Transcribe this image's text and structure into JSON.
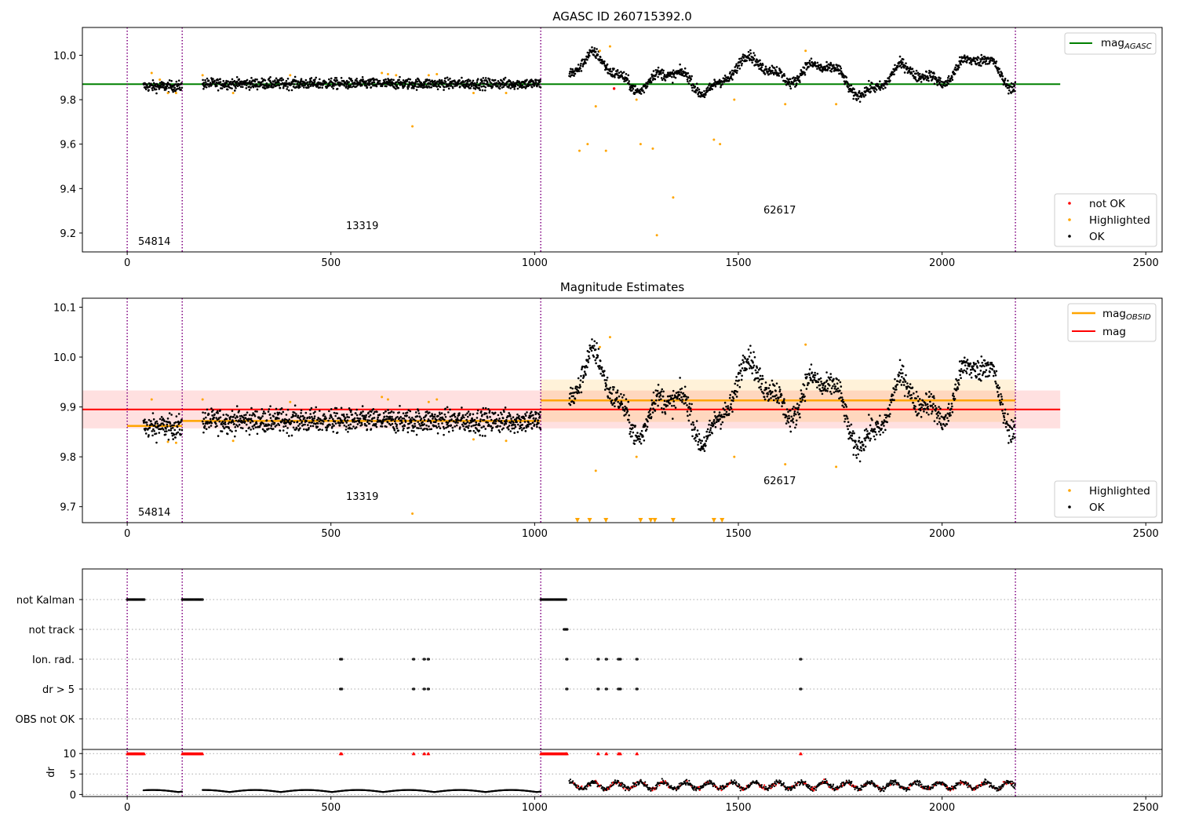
{
  "panel1": {
    "title": "AGASC ID 260715392.0",
    "legend_line": {
      "label": "mag",
      "sub": "AGASC",
      "color": "#008000"
    },
    "legend_points": [
      {
        "label": "not OK",
        "color": "#ff0000"
      },
      {
        "label": "Highlighted",
        "color": "#ffa500"
      },
      {
        "label": "OK",
        "color": "#000000"
      }
    ],
    "xticks": [
      "0",
      "500",
      "1000",
      "1500",
      "2000",
      "2500"
    ],
    "yticks": [
      "10.0",
      "9.8",
      "9.6",
      "9.4",
      "9.2"
    ],
    "obsid_labels": [
      "54814",
      "13319",
      "62617"
    ]
  },
  "panel2": {
    "title": "Magnitude Estimates",
    "legend_lines": [
      {
        "label": "mag",
        "sub": "OBSID",
        "color": "#ffa500"
      },
      {
        "label": "mag",
        "sub": "",
        "color": "#ff0000"
      }
    ],
    "legend_points": [
      {
        "label": "Highlighted",
        "color": "#ffa500"
      },
      {
        "label": "OK",
        "color": "#000000"
      }
    ],
    "xticks": [
      "0",
      "500",
      "1000",
      "1500",
      "2000",
      "2500"
    ],
    "yticks": [
      "10.1",
      "10.0",
      "9.9",
      "9.8",
      "9.7"
    ],
    "obsid_labels": [
      "54814",
      "13319",
      "62617"
    ]
  },
  "panel3": {
    "flag_labels": [
      "not Kalman",
      "not track",
      "Ion. rad.",
      "dr > 5",
      "OBS not OK"
    ],
    "dr_ylabel": "dr",
    "dr_yticks": [
      "10",
      "5",
      "0"
    ],
    "xticks": [
      "0",
      "500",
      "1000",
      "1500",
      "2000",
      "2500"
    ]
  },
  "chart_data": [
    {
      "type": "scatter",
      "title": "AGASC ID 260715392.0",
      "xlim": [
        -110,
        2540
      ],
      "ylim": [
        9.115,
        10.125
      ],
      "obsid_boundaries": [
        0,
        135,
        1015,
        2180
      ],
      "obsids": [
        "54814",
        "13319",
        "62617"
      ],
      "mag_agasc": 9.87,
      "segments": [
        {
          "x0": 40,
          "x1": 135,
          "mean": 9.86,
          "scatter": 0.012
        },
        {
          "x0": 185,
          "x1": 1015,
          "mean": 9.872,
          "scatter": 0.012
        },
        {
          "x0": 1085,
          "x1": 2180,
          "mean": 9.91,
          "scatter": 0.035
        }
      ],
      "series": [
        {
          "name": "Highlighted",
          "x": [
            60,
            80,
            100,
            120,
            185,
            260,
            400,
            625,
            640,
            660,
            700,
            740,
            760,
            850,
            930,
            1110,
            1130,
            1150,
            1160,
            1175,
            1185,
            1250,
            1260,
            1290,
            1300,
            1340,
            1440,
            1455,
            1490,
            1615,
            1665,
            1740
          ],
          "y": [
            9.92,
            9.89,
            9.83,
            9.83,
            9.91,
            9.83,
            9.91,
            9.92,
            9.915,
            9.91,
            9.68,
            9.91,
            9.915,
            9.83,
            9.83,
            9.57,
            9.6,
            9.77,
            10.02,
            9.57,
            10.04,
            9.8,
            9.6,
            9.58,
            9.19,
            9.36,
            9.62,
            9.6,
            9.8,
            9.78,
            10.02,
            9.78
          ]
        },
        {
          "name": "not OK",
          "x": [
            1195
          ],
          "y": [
            9.85
          ]
        }
      ]
    },
    {
      "type": "scatter",
      "title": "Magnitude Estimates",
      "xlim": [
        -110,
        2540
      ],
      "ylim": [
        9.668,
        10.118
      ],
      "mag": 9.895,
      "mag_band": [
        9.857,
        9.933
      ],
      "obsid_means": [
        {
          "x0": 0,
          "x1": 135,
          "value": 9.862
        },
        {
          "x0": 135,
          "x1": 1015,
          "value": 9.872
        },
        {
          "x0": 1015,
          "x1": 2180,
          "value": 9.913
        }
      ],
      "obsid_band_62617": [
        9.87,
        9.955
      ],
      "series": [
        {
          "name": "Highlighted",
          "x": [
            60,
            100,
            120,
            185,
            260,
            400,
            625,
            640,
            700,
            740,
            760,
            850,
            930,
            1150,
            1160,
            1185,
            1250,
            1490,
            1615,
            1665,
            1740
          ],
          "y": [
            9.915,
            9.83,
            9.828,
            9.915,
            9.832,
            9.91,
            9.92,
            9.915,
            9.686,
            9.91,
            9.915,
            9.835,
            9.832,
            9.772,
            10.02,
            10.04,
            9.8,
            9.8,
            9.785,
            10.025,
            9.78
          ]
        },
        {
          "name": "Highlighted (below axis)",
          "x": [
            1105,
            1135,
            1175,
            1260,
            1285,
            1295,
            1340,
            1440,
            1460
          ],
          "y": [
            9.67,
            9.67,
            9.67,
            9.67,
            9.67,
            9.67,
            9.67,
            9.67,
            9.67
          ]
        }
      ]
    },
    {
      "type": "scatter",
      "flags": [
        "not Kalman",
        "not track",
        "Ion. rad.",
        "dr > 5",
        "OBS not OK"
      ],
      "flag_ranges": {
        "not Kalman": [
          [
            0,
            42
          ],
          [
            135,
            185
          ],
          [
            1015,
            1078
          ]
        ],
        "not track": [
          [
            1072,
            1080
          ]
        ],
        "Ion. rad.": [
          [
            523,
            528
          ],
          [
            702,
            704
          ],
          [
            728,
            730
          ],
          [
            738,
            740
          ],
          [
            1078,
            1080
          ],
          [
            1155,
            1158
          ],
          [
            1175,
            1178
          ],
          [
            1205,
            1212
          ],
          [
            1250,
            1252
          ],
          [
            1652,
            1654
          ]
        ],
        "dr > 5": [
          [
            523,
            528
          ],
          [
            702,
            704
          ],
          [
            728,
            730
          ],
          [
            738,
            740
          ],
          [
            1078,
            1080
          ],
          [
            1155,
            1158
          ],
          [
            1175,
            1178
          ],
          [
            1205,
            1212
          ],
          [
            1250,
            1252
          ],
          [
            1652,
            1654
          ]
        ],
        "OBS not OK": []
      },
      "dr_ylim": [
        -0.5,
        11
      ],
      "dr_clipped_at": 10
    }
  ],
  "colors": {
    "ok": "#000000",
    "highlighted": "#ffa500",
    "not_ok": "#ff0000",
    "mag_agasc": "#008000",
    "mag": "#ff0000",
    "mag_obsid": "#ffa500",
    "obsid_boundary": "#800080"
  }
}
